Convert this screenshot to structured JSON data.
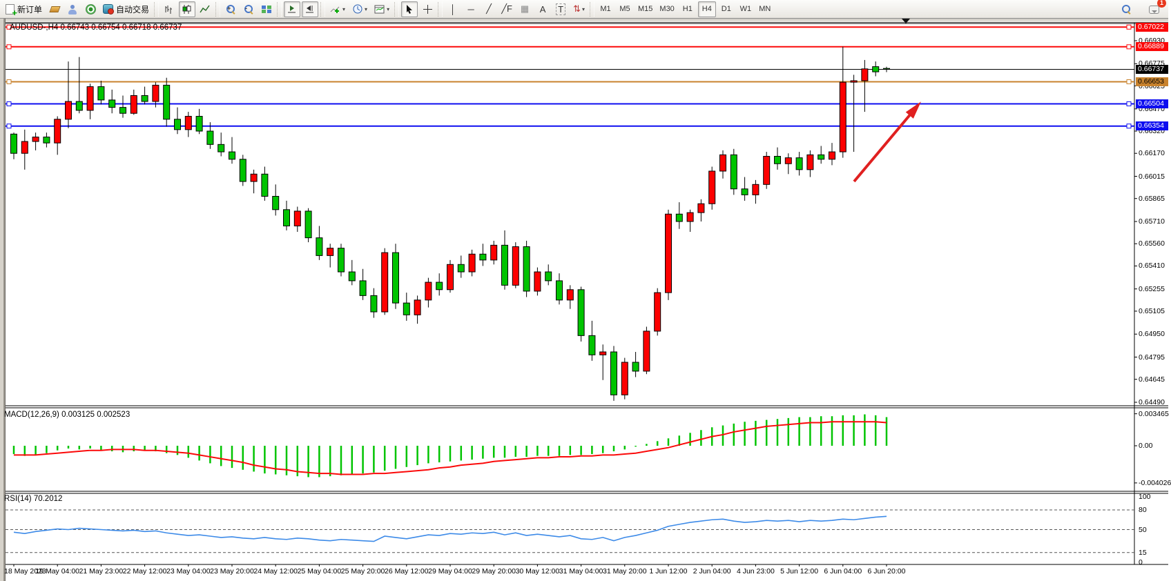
{
  "toolbar": {
    "new_order_label": "新订单",
    "auto_trading_label": "自动交易",
    "glyphs": {
      "vline": "│",
      "hline": "─",
      "trend": "╱",
      "fibo": "╱F",
      "cycles": "▦",
      "text": "A",
      "label": "T",
      "arrows": "⇅",
      "cursor": "↖",
      "crosshair": "✛",
      "dropdown": "▾",
      "clock": "◷",
      "template": "▤",
      "indicator": "＋"
    },
    "timeframes": [
      {
        "label": "M1",
        "active": false
      },
      {
        "label": "M5",
        "active": false
      },
      {
        "label": "M15",
        "active": false
      },
      {
        "label": "M30",
        "active": false
      },
      {
        "label": "H1",
        "active": false
      },
      {
        "label": "H4",
        "active": true
      },
      {
        "label": "D1",
        "active": false
      },
      {
        "label": "W1",
        "active": false
      },
      {
        "label": "MN",
        "active": false
      }
    ],
    "notification_count": "1"
  },
  "chart": {
    "title_line": "AUDUSD-,H4  0.66743 0.66754 0.66718 0.66737",
    "symbol": "AUDUSD-",
    "timeframe": "H4"
  },
  "macd": {
    "title_line": "MACD(12,26,9) 0.003125 0.002523"
  },
  "rsi": {
    "title_line": "RSI(14) 70.2012"
  },
  "chart_data": {
    "type": "candlestick",
    "symbol": "AUDUSD-",
    "timeframe": "H4",
    "current_ohlc": {
      "open": 0.66743,
      "high": 0.66754,
      "low": 0.66718,
      "close": 0.66737
    },
    "colors": {
      "bull": "#fd0000",
      "bear": "#00c400",
      "outline": "#000000",
      "line_red": "#fb0909",
      "line_orange": "#c8822d",
      "line_blue": "#0d0df0",
      "macd_hist": "#00c400",
      "macd_signal": "#fb0909",
      "rsi_line": "#3c8ae8",
      "arrow": "#e02020"
    },
    "y_axis_ticks": [
      0.6693,
      0.66775,
      0.66625,
      0.6647,
      0.6632,
      0.6617,
      0.66015,
      0.65865,
      0.6571,
      0.6556,
      0.6541,
      0.65255,
      0.65105,
      0.6495,
      0.64795,
      0.64645,
      0.6449
    ],
    "price_lines": [
      {
        "price": 0.67022,
        "color": "red",
        "label": "0.67022"
      },
      {
        "price": 0.66889,
        "color": "red",
        "label": "0.66889"
      },
      {
        "price": 0.66737,
        "color": "black",
        "label": "0.66737",
        "current": true
      },
      {
        "price": 0.66653,
        "color": "orange",
        "label": "0.66653"
      },
      {
        "price": 0.66504,
        "color": "blue",
        "label": "0.66504"
      },
      {
        "price": 0.66354,
        "color": "blue",
        "label": "0.66354"
      }
    ],
    "x_labels": [
      "18 May 2023",
      "19 May 04:00",
      "21 May 23:00",
      "22 May 12:00",
      "23 May 04:00",
      "23 May 20:00",
      "24 May 12:00",
      "25 May 04:00",
      "25 May 20:00",
      "26 May 12:00",
      "29 May 04:00",
      "29 May 20:00",
      "30 May 12:00",
      "31 May 04:00",
      "31 May 20:00",
      "1 Jun 12:00",
      "2 Jun 04:00",
      "4 Jun 23:00",
      "5 Jun 12:00",
      "6 Jun 04:00",
      "6 Jun 20:00"
    ],
    "candles": [
      [
        0.663,
        0.6631,
        0.6613,
        0.6617
      ],
      [
        0.6617,
        0.6633,
        0.6606,
        0.6625
      ],
      [
        0.6625,
        0.6631,
        0.6619,
        0.6628
      ],
      [
        0.6628,
        0.6631,
        0.6621,
        0.6624
      ],
      [
        0.6624,
        0.6642,
        0.6616,
        0.664
      ],
      [
        0.664,
        0.6679,
        0.6634,
        0.6652
      ],
      [
        0.6652,
        0.6682,
        0.6644,
        0.6646
      ],
      [
        0.6646,
        0.6664,
        0.664,
        0.6662
      ],
      [
        0.6662,
        0.6666,
        0.665,
        0.6653
      ],
      [
        0.6653,
        0.666,
        0.6644,
        0.6648
      ],
      [
        0.6648,
        0.6656,
        0.6641,
        0.6644
      ],
      [
        0.6644,
        0.666,
        0.6643,
        0.6656
      ],
      [
        0.6656,
        0.6662,
        0.665,
        0.6652
      ],
      [
        0.6652,
        0.6665,
        0.6648,
        0.6663
      ],
      [
        0.6663,
        0.6668,
        0.6635,
        0.664
      ],
      [
        0.664,
        0.6648,
        0.663,
        0.6633
      ],
      [
        0.6633,
        0.6645,
        0.6628,
        0.6642
      ],
      [
        0.6642,
        0.6647,
        0.663,
        0.6632
      ],
      [
        0.6632,
        0.6638,
        0.662,
        0.6623
      ],
      [
        0.6623,
        0.6631,
        0.6615,
        0.6618
      ],
      [
        0.6618,
        0.6628,
        0.661,
        0.6613
      ],
      [
        0.6613,
        0.6616,
        0.6595,
        0.6598
      ],
      [
        0.6598,
        0.6606,
        0.659,
        0.6603
      ],
      [
        0.6603,
        0.6608,
        0.6585,
        0.6588
      ],
      [
        0.6588,
        0.6596,
        0.6575,
        0.6579
      ],
      [
        0.6579,
        0.6585,
        0.6565,
        0.6568
      ],
      [
        0.6568,
        0.6581,
        0.6564,
        0.6578
      ],
      [
        0.6578,
        0.658,
        0.6557,
        0.656
      ],
      [
        0.656,
        0.6568,
        0.6545,
        0.6548
      ],
      [
        0.6548,
        0.6556,
        0.654,
        0.6553
      ],
      [
        0.6553,
        0.6556,
        0.6534,
        0.6537
      ],
      [
        0.6537,
        0.6545,
        0.6528,
        0.6531
      ],
      [
        0.6531,
        0.6539,
        0.6518,
        0.6521
      ],
      [
        0.6521,
        0.6526,
        0.6506,
        0.651
      ],
      [
        0.651,
        0.6553,
        0.6508,
        0.655
      ],
      [
        0.655,
        0.6556,
        0.6512,
        0.6516
      ],
      [
        0.6516,
        0.6523,
        0.6504,
        0.6508
      ],
      [
        0.6508,
        0.6521,
        0.6502,
        0.6518
      ],
      [
        0.6518,
        0.6533,
        0.6513,
        0.653
      ],
      [
        0.653,
        0.6536,
        0.6521,
        0.6525
      ],
      [
        0.6525,
        0.6545,
        0.6523,
        0.6542
      ],
      [
        0.6542,
        0.6548,
        0.6533,
        0.6537
      ],
      [
        0.6537,
        0.6552,
        0.6534,
        0.6549
      ],
      [
        0.6549,
        0.6556,
        0.6541,
        0.6545
      ],
      [
        0.6545,
        0.6558,
        0.6542,
        0.6555
      ],
      [
        0.6555,
        0.6565,
        0.6525,
        0.6528
      ],
      [
        0.6528,
        0.6557,
        0.6526,
        0.6554
      ],
      [
        0.6554,
        0.6558,
        0.652,
        0.6524
      ],
      [
        0.6524,
        0.654,
        0.6521,
        0.6537
      ],
      [
        0.6537,
        0.6542,
        0.6528,
        0.6531
      ],
      [
        0.6531,
        0.6536,
        0.6515,
        0.6518
      ],
      [
        0.6518,
        0.6528,
        0.6512,
        0.6525
      ],
      [
        0.6525,
        0.6527,
        0.649,
        0.6494
      ],
      [
        0.6494,
        0.6504,
        0.6477,
        0.6481
      ],
      [
        0.6481,
        0.6488,
        0.6464,
        0.6483
      ],
      [
        0.6483,
        0.6487,
        0.645,
        0.6454
      ],
      [
        0.6454,
        0.6479,
        0.6451,
        0.6476
      ],
      [
        0.6476,
        0.6483,
        0.6466,
        0.647
      ],
      [
        0.647,
        0.65,
        0.6468,
        0.6497
      ],
      [
        0.6497,
        0.6526,
        0.6494,
        0.6523
      ],
      [
        0.6523,
        0.6579,
        0.6518,
        0.6576
      ],
      [
        0.6576,
        0.6584,
        0.6566,
        0.6571
      ],
      [
        0.6571,
        0.6579,
        0.6564,
        0.6577
      ],
      [
        0.6577,
        0.6586,
        0.6571,
        0.6583
      ],
      [
        0.6583,
        0.6608,
        0.6579,
        0.6605
      ],
      [
        0.6605,
        0.6619,
        0.66,
        0.6616
      ],
      [
        0.6616,
        0.662,
        0.6589,
        0.6593
      ],
      [
        0.6593,
        0.6601,
        0.6585,
        0.6589
      ],
      [
        0.6589,
        0.6599,
        0.6583,
        0.6596
      ],
      [
        0.6596,
        0.6618,
        0.6593,
        0.6615
      ],
      [
        0.6615,
        0.6621,
        0.6606,
        0.661
      ],
      [
        0.661,
        0.6617,
        0.6603,
        0.6614
      ],
      [
        0.6614,
        0.6618,
        0.6602,
        0.6606
      ],
      [
        0.6606,
        0.6619,
        0.6601,
        0.6616
      ],
      [
        0.6616,
        0.6622,
        0.661,
        0.6613
      ],
      [
        0.6613,
        0.6624,
        0.6609,
        0.6618
      ],
      [
        0.6618,
        0.6689,
        0.6614,
        0.6665
      ],
      [
        0.6665,
        0.667,
        0.6618,
        0.6666
      ],
      [
        0.6666,
        0.668,
        0.6645,
        0.6674
      ],
      [
        0.66755,
        0.6679,
        0.6669,
        0.6672
      ],
      [
        0.66743,
        0.66754,
        0.66718,
        0.66737
      ]
    ],
    "macd": {
      "value": 0.003125,
      "signal_value": 0.002523,
      "axis": [
        {
          "v": 0.003465,
          "label": "0.003465"
        },
        {
          "v": 0,
          "label": "0.00"
        },
        {
          "v": -0.004026,
          "label": "-0.004026"
        }
      ],
      "histogram": [
        -0.0009,
        -0.0011,
        -0.001,
        -0.0008,
        -0.0005,
        -0.0003,
        -0.0004,
        -0.0003,
        -0.0005,
        -0.0006,
        -0.0007,
        -0.0006,
        -0.0005,
        -0.0006,
        -0.0008,
        -0.001,
        -0.0013,
        -0.0016,
        -0.0019,
        -0.0022,
        -0.0024,
        -0.0026,
        -0.0028,
        -0.003,
        -0.0031,
        -0.0032,
        -0.0033,
        -0.0034,
        -0.0034,
        -0.0033,
        -0.0032,
        -0.0031,
        -0.003,
        -0.0029,
        -0.0027,
        -0.0025,
        -0.0023,
        -0.0021,
        -0.0019,
        -0.0018,
        -0.0017,
        -0.0016,
        -0.0015,
        -0.0014,
        -0.0013,
        -0.0013,
        -0.0012,
        -0.0012,
        -0.0011,
        -0.0011,
        -0.0011,
        -0.001,
        -0.001,
        -0.0009,
        -0.0008,
        -0.0006,
        -0.0004,
        -0.0001,
        0.0002,
        0.0005,
        0.0008,
        0.0011,
        0.0014,
        0.0017,
        0.002,
        0.0022,
        0.0024,
        0.0026,
        0.0027,
        0.0028,
        0.0029,
        0.003,
        0.0031,
        0.0031,
        0.0032,
        0.0032,
        0.0033,
        0.0033,
        0.0034,
        0.0033,
        0.0031
      ],
      "signal": [
        -0.001,
        -0.001,
        -0.001,
        -0.0009,
        -0.0008,
        -0.0007,
        -0.0006,
        -0.0005,
        -0.0005,
        -0.0004,
        -0.0004,
        -0.0004,
        -0.0005,
        -0.0005,
        -0.0006,
        -0.0007,
        -0.0008,
        -0.001,
        -0.0012,
        -0.0014,
        -0.0016,
        -0.0018,
        -0.0021,
        -0.0023,
        -0.0025,
        -0.0026,
        -0.0028,
        -0.0029,
        -0.003,
        -0.003,
        -0.0031,
        -0.0031,
        -0.0031,
        -0.003,
        -0.003,
        -0.0029,
        -0.0028,
        -0.0027,
        -0.0026,
        -0.0024,
        -0.0023,
        -0.0021,
        -0.002,
        -0.0019,
        -0.0017,
        -0.0016,
        -0.0015,
        -0.0014,
        -0.0013,
        -0.0013,
        -0.0012,
        -0.0012,
        -0.0011,
        -0.0011,
        -0.001,
        -0.001,
        -0.0009,
        -0.0008,
        -0.0006,
        -0.0004,
        -0.0002,
        0.0001,
        0.0004,
        0.0007,
        0.001,
        0.0012,
        0.0015,
        0.0017,
        0.0019,
        0.0021,
        0.0022,
        0.0023,
        0.0024,
        0.0025,
        0.0025,
        0.0026,
        0.0026,
        0.0026,
        0.0026,
        0.0026,
        0.0025
      ]
    },
    "rsi": {
      "value": 70.2012,
      "axis_labels": [
        100,
        80,
        50,
        15,
        0
      ],
      "dashed_levels": [
        80,
        50,
        15
      ],
      "values": [
        46,
        44,
        47,
        49,
        51,
        50,
        52,
        51,
        50,
        49,
        48,
        49,
        47,
        48,
        45,
        43,
        41,
        42,
        40,
        38,
        39,
        37,
        36,
        38,
        36,
        35,
        37,
        36,
        34,
        33,
        35,
        34,
        33,
        32,
        40,
        38,
        36,
        39,
        42,
        41,
        44,
        43,
        45,
        44,
        46,
        42,
        45,
        41,
        43,
        41,
        39,
        41,
        36,
        35,
        38,
        33,
        38,
        41,
        45,
        49,
        55,
        58,
        61,
        63,
        65,
        66,
        63,
        61,
        62,
        64,
        63,
        64,
        62,
        64,
        63,
        64,
        66,
        65,
        67,
        69,
        70.2
      ],
      "ylim": [
        0,
        100
      ]
    },
    "annotation_arrow": {
      "from": [
        1237,
        263
      ],
      "to": [
        1325,
        158
      ]
    }
  }
}
